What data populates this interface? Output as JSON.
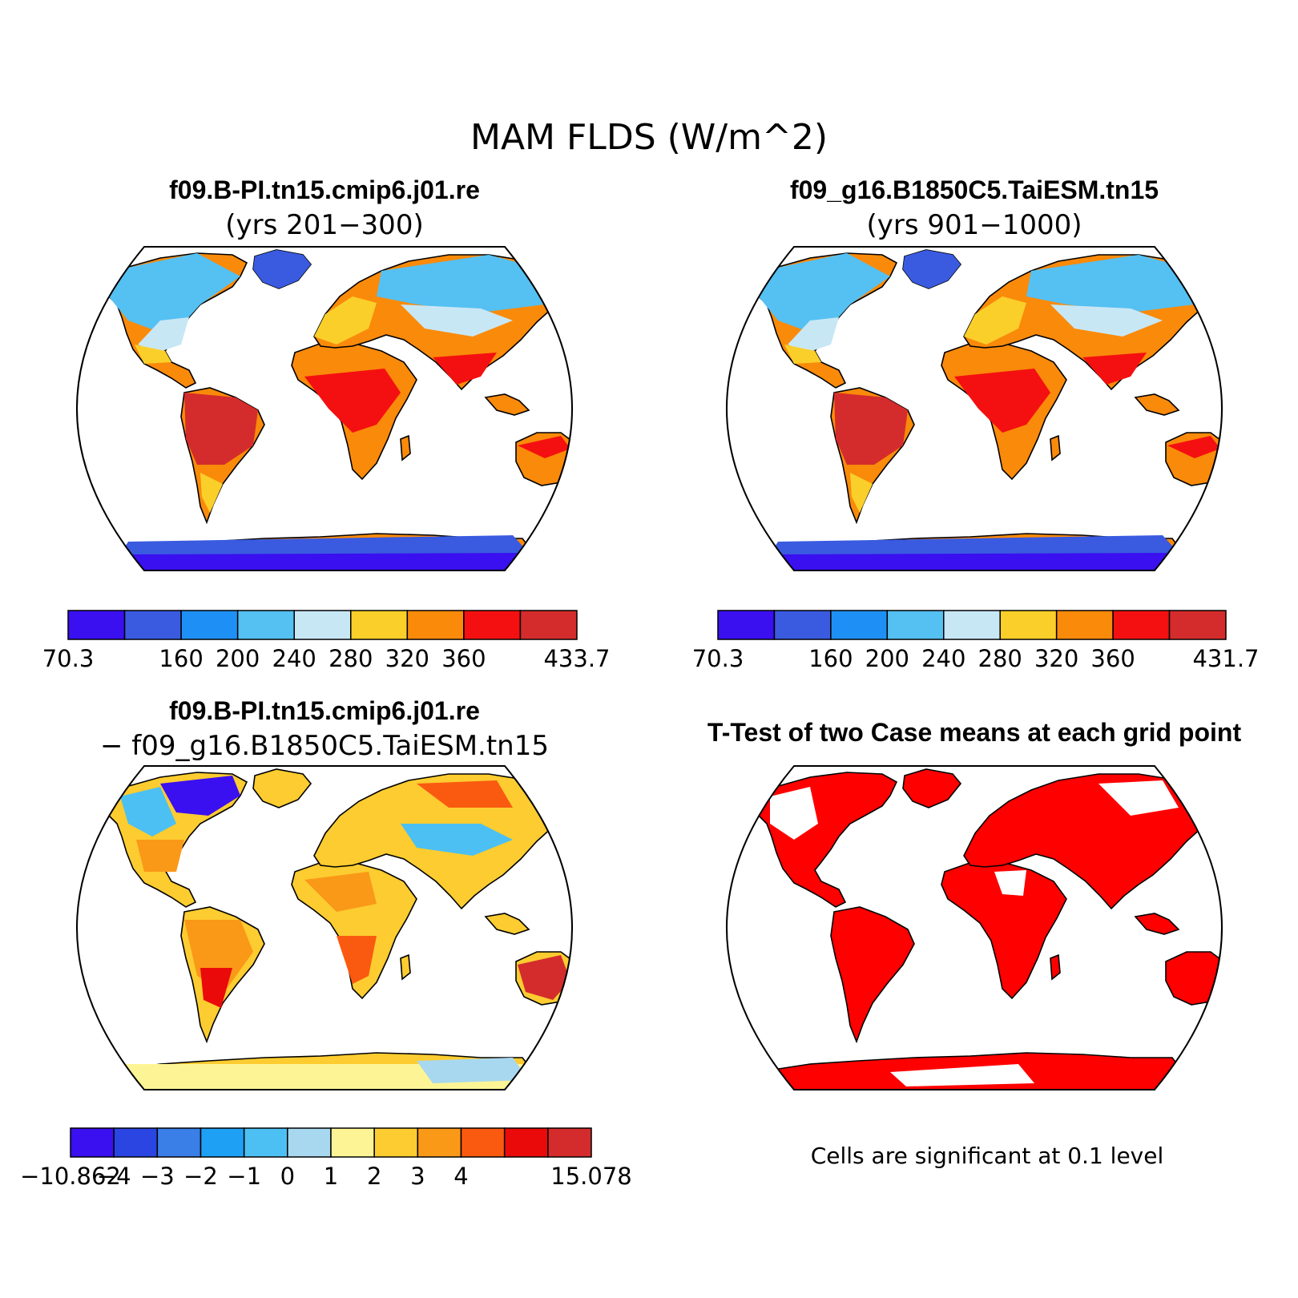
{
  "title": "MAM FLDS (W/m^2)",
  "panels": [
    {
      "id": "case1",
      "title_line1": "f09.B-PI.tn15.cmip6.j01.re",
      "title_line2": "(yrs 201−300)",
      "colorbar": {
        "colors": [
          "#3a0ff0",
          "#3a5be0",
          "#1e90f5",
          "#55c0f2",
          "#c8e7f5",
          "#fbcf2a",
          "#fa8a0a",
          "#f41010",
          "#d42c2c"
        ],
        "tick_labels": [
          "70.3",
          "",
          "160",
          "200",
          "240",
          "280",
          "320",
          "360",
          "",
          "433.7"
        ]
      }
    },
    {
      "id": "case2",
      "title_line1": "f09_g16.B1850C5.TaiESM.tn15",
      "title_line2": "(yrs 901−1000)",
      "colorbar": {
        "colors": [
          "#3a0ff0",
          "#3a5be0",
          "#1e90f5",
          "#55c0f2",
          "#c8e7f5",
          "#fbcf2a",
          "#fa8a0a",
          "#f41010",
          "#d42c2c"
        ],
        "tick_labels": [
          "70.3",
          "",
          "160",
          "200",
          "240",
          "280",
          "320",
          "360",
          "",
          "431.7"
        ]
      }
    },
    {
      "id": "diff",
      "title_line1": "f09.B-PI.tn15.cmip6.j01.re",
      "title_line2": "− f09_g16.B1850C5.TaiESM.tn15",
      "colorbar": {
        "colors": [
          "#3a0ff0",
          "#2a45e2",
          "#3a7ee8",
          "#1ea0f5",
          "#4cc0f2",
          "#a8d8ef",
          "#fdf595",
          "#fccc30",
          "#fa9818",
          "#fa5a10",
          "#ea0a0a",
          "#d42c2c"
        ],
        "tick_labels": [
          "−10.862",
          "−4",
          "−3",
          "−2",
          "−1",
          "0",
          "1",
          "2",
          "3",
          "4",
          "",
          "",
          "15.078"
        ]
      }
    },
    {
      "id": "ttest",
      "title_line1": "T-Test of two Case means at each grid point",
      "note": "Cells are significant at 0.1 level",
      "fill_color": "#ff0000"
    }
  ]
}
